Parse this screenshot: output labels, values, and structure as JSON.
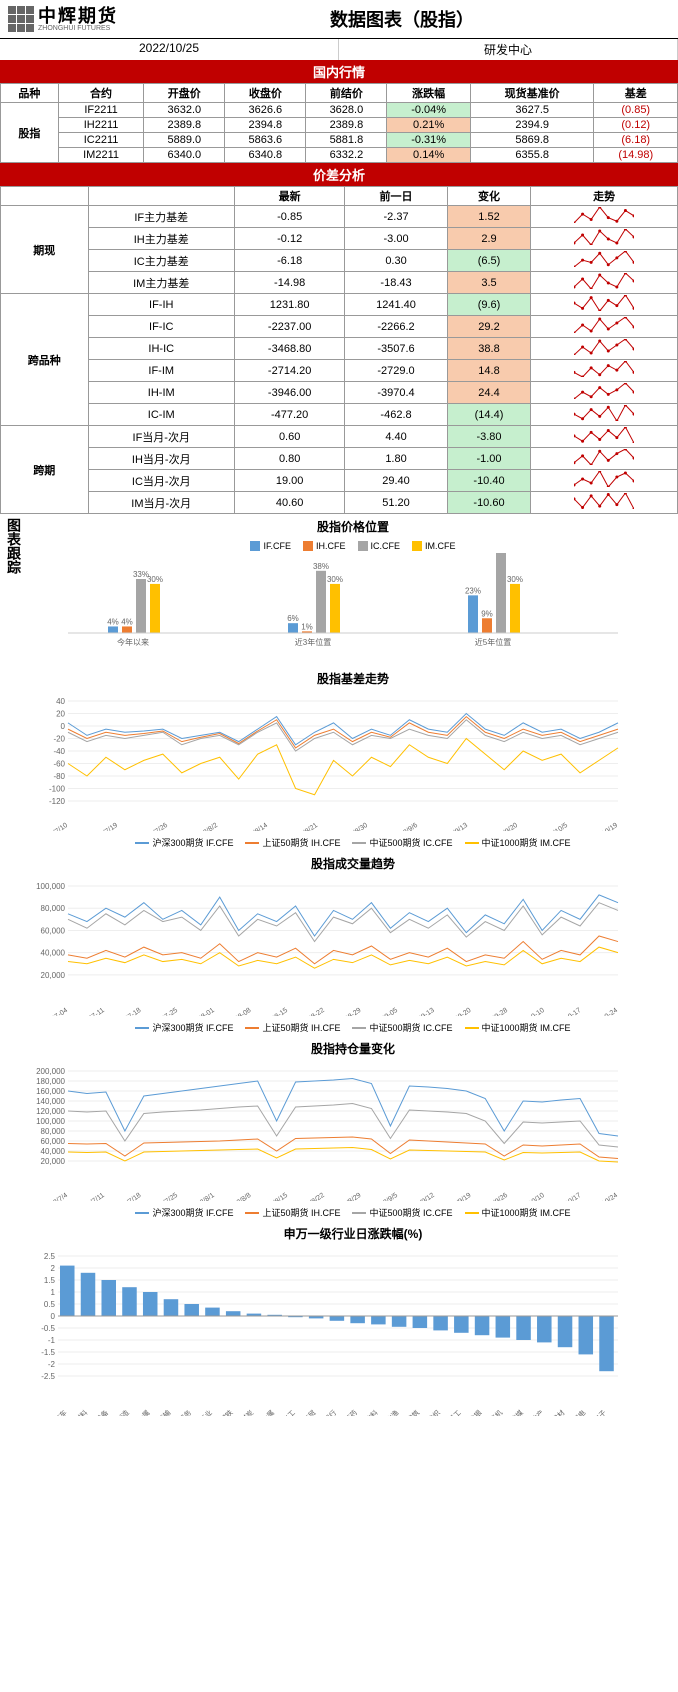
{
  "header": {
    "logo_cn": "中辉期货",
    "logo_en": "ZHONGHUI FUTURES",
    "title": "数据图表（股指）",
    "date": "2022/10/25",
    "dept": "研发中心"
  },
  "band1": "国内行情",
  "t1": {
    "cols": [
      "品种",
      "合约",
      "开盘价",
      "收盘价",
      "前结价",
      "涨跌幅",
      "现货基准价",
      "基差"
    ],
    "rowlbl": "股指",
    "rows": [
      [
        "IF2211",
        "3632.0",
        "3626.6",
        "3628.0",
        "-0.04%",
        "3627.5",
        "(0.85)"
      ],
      [
        "IH2211",
        "2389.8",
        "2394.8",
        "2389.8",
        "0.21%",
        "2394.9",
        "(0.12)"
      ],
      [
        "IC2211",
        "5889.0",
        "5863.6",
        "5881.8",
        "-0.31%",
        "5869.8",
        "(6.18)"
      ],
      [
        "IM2211",
        "6340.0",
        "6340.8",
        "6332.2",
        "0.14%",
        "6355.8",
        "(14.98)"
      ]
    ],
    "chg_bg": [
      "bg-grn",
      "bg-red",
      "bg-grn",
      "bg-red"
    ]
  },
  "band2": "价差分析",
  "t2": {
    "cols": [
      "",
      "",
      "最新",
      "前一日",
      "变化",
      "走势"
    ],
    "groups": [
      {
        "lbl": "期现",
        "rows": [
          [
            "IF主力基差",
            "-0.85",
            "-2.37",
            "1.52",
            "bg-red",
            [
              3,
              8,
              5,
              12,
              6,
              4,
              10,
              7
            ]
          ],
          [
            "IH主力基差",
            "-0.12",
            "-3.00",
            "2.9",
            "bg-red",
            [
              5,
              9,
              4,
              11,
              7,
              5,
              12,
              8
            ]
          ],
          [
            "IC主力基差",
            "-6.18",
            "0.30",
            "(6.5)",
            "bg-grn",
            [
              4,
              7,
              6,
              10,
              5,
              8,
              11,
              6
            ]
          ],
          [
            "IM主力基差",
            "-14.98",
            "-18.43",
            "3.5",
            "bg-red",
            [
              6,
              10,
              5,
              12,
              8,
              6,
              13,
              9
            ]
          ]
        ]
      },
      {
        "lbl": "跨品种",
        "rows": [
          [
            "IF-IH",
            "1231.80",
            "1241.40",
            "(9.6)",
            "bg-grn",
            [
              7,
              5,
              9,
              4,
              8,
              6,
              10,
              5
            ]
          ],
          [
            "IF-IC",
            "-2237.00",
            "-2266.2",
            "29.2",
            "bg-red",
            [
              4,
              8,
              5,
              11,
              6,
              9,
              12,
              7
            ]
          ],
          [
            "IH-IC",
            "-3468.80",
            "-3507.6",
            "38.8",
            "bg-red",
            [
              5,
              9,
              6,
              12,
              7,
              10,
              13,
              8
            ]
          ],
          [
            "IF-IM",
            "-2714.20",
            "-2729.0",
            "14.8",
            "bg-red",
            [
              6,
              4,
              8,
              5,
              9,
              7,
              11,
              6
            ]
          ],
          [
            "IH-IM",
            "-3946.00",
            "-3970.4",
            "24.4",
            "bg-red",
            [
              5,
              8,
              6,
              10,
              7,
              9,
              12,
              8
            ]
          ],
          [
            "IC-IM",
            "-477.20",
            "-462.8",
            "(14.4)",
            "bg-grn",
            [
              7,
              5,
              9,
              6,
              10,
              4,
              11,
              7
            ]
          ]
        ]
      },
      {
        "lbl": "跨期",
        "rows": [
          [
            "IF当月-次月",
            "0.60",
            "4.40",
            "-3.80",
            "bg-grn",
            [
              8,
              5,
              10,
              6,
              11,
              7,
              13,
              4
            ]
          ],
          [
            "IH当月-次月",
            "0.80",
            "1.80",
            "-1.00",
            "bg-grn",
            [
              6,
              9,
              5,
              11,
              7,
              10,
              12,
              8
            ]
          ],
          [
            "IC当月-次月",
            "19.00",
            "29.40",
            "-10.40",
            "bg-grn",
            [
              5,
              8,
              6,
              12,
              4,
              9,
              11,
              7
            ]
          ],
          [
            "IM当月-次月",
            "40.60",
            "51.20",
            "-10.60",
            "bg-grn",
            [
              10,
              4,
              12,
              5,
              13,
              6,
              14,
              3
            ]
          ]
        ]
      }
    ]
  },
  "chart_lbl": "图表跟踪",
  "c1": {
    "title": "股指价格位置",
    "legend": [
      [
        "IF.CFE",
        "#5b9bd5"
      ],
      [
        "IH.CFE",
        "#ed7d31"
      ],
      [
        "IC.CFE",
        "#a5a5a5"
      ],
      [
        "IM.CFE",
        "#ffc000"
      ]
    ],
    "groups": [
      "今年以来",
      "近3年位置",
      "近5年位置"
    ],
    "data": [
      [
        4,
        4,
        33,
        30
      ],
      [
        6,
        1,
        38,
        30
      ],
      [
        23,
        9,
        51,
        30
      ]
    ]
  },
  "c2": {
    "title": "股指基差走势",
    "legend": [
      [
        "沪深300期货 IF.CFE",
        "#5b9bd5"
      ],
      [
        "上证50期货 IH.CFE",
        "#ed7d31"
      ],
      [
        "中证500期货 IC.CFE",
        "#a5a5a5"
      ],
      [
        "中证1000期货 IM.CFE",
        "#ffc000"
      ]
    ],
    "yticks": [
      40,
      20,
      0,
      -20,
      -40,
      -60,
      -80,
      -100,
      -120
    ],
    "ylim": [
      -120,
      40
    ],
    "xlabels": [
      "2022/7/10",
      "2022/7/19",
      "2022/7/26",
      "2022/8/2",
      "2022/8/14",
      "2022/8/21",
      "2022/8/30",
      "2022/9/6",
      "2022/9/13",
      "2022/9/20",
      "2022/10/5",
      "2022/10/19"
    ],
    "series": [
      [
        5,
        -15,
        -5,
        -10,
        -8,
        -5,
        -20,
        -15,
        -10,
        -25,
        -5,
        15,
        -30,
        -10,
        5,
        -20,
        -5,
        -15,
        10,
        -5,
        -10,
        20,
        -5,
        -15,
        5,
        -10,
        -5,
        -20,
        -10,
        5
      ],
      [
        -5,
        -20,
        -10,
        -15,
        -12,
        -8,
        -25,
        -18,
        -12,
        -28,
        -8,
        10,
        -35,
        -15,
        -5,
        -25,
        -10,
        -18,
        5,
        -10,
        -15,
        15,
        -10,
        -20,
        -5,
        -15,
        -10,
        -25,
        -15,
        -5
      ],
      [
        -10,
        -25,
        -15,
        -20,
        -15,
        -10,
        -30,
        -20,
        -15,
        -30,
        -10,
        5,
        -40,
        -20,
        -10,
        -30,
        -15,
        -20,
        -5,
        -15,
        -20,
        10,
        -15,
        -25,
        -10,
        -20,
        -15,
        -30,
        -20,
        -10
      ],
      [
        -60,
        -80,
        -50,
        -70,
        -55,
        -45,
        -75,
        -60,
        -50,
        -85,
        -45,
        -30,
        -100,
        -110,
        -55,
        -80,
        -50,
        -65,
        -30,
        -50,
        -60,
        -20,
        -45,
        -70,
        -40,
        -55,
        -45,
        -75,
        -55,
        -35
      ]
    ]
  },
  "c3": {
    "title": "股指成交量趋势",
    "legend": [
      [
        "沪深300期货 IF.CFE",
        "#5b9bd5"
      ],
      [
        "上证50期货 IH.CFE",
        "#ed7d31"
      ],
      [
        "中证500期货 IC.CFE",
        "#a5a5a5"
      ],
      [
        "中证1000期货 IM.CFE",
        "#ffc000"
      ]
    ],
    "yticks": [
      100000,
      80000,
      60000,
      40000,
      20000
    ],
    "ylim": [
      10000,
      100000
    ],
    "xlabels": [
      "2022-07-04",
      "2022-07-11",
      "2022-07-18",
      "2022-07-25",
      "2022-08-01",
      "2022-08-08",
      "2022-08-15",
      "2022-08-22",
      "2022-08-29",
      "2022-09-05",
      "2022-09-13",
      "2022-09-20",
      "2022-09-28",
      "2022-10-10",
      "2022-10-17",
      "2022-10-24"
    ],
    "series": [
      [
        75000,
        68000,
        80000,
        72000,
        85000,
        70000,
        78000,
        65000,
        90000,
        60000,
        75000,
        68000,
        82000,
        55000,
        78000,
        70000,
        85000,
        62000,
        76000,
        68000,
        80000,
        58000,
        74000,
        66000,
        88000,
        60000,
        78000,
        70000,
        92000,
        85000
      ],
      [
        38000,
        35000,
        42000,
        36000,
        45000,
        38000,
        40000,
        35000,
        48000,
        32000,
        40000,
        36000,
        44000,
        30000,
        42000,
        38000,
        46000,
        34000,
        40000,
        36000,
        44000,
        32000,
        38000,
        35000,
        50000,
        34000,
        42000,
        38000,
        55000,
        50000
      ],
      [
        70000,
        62000,
        75000,
        65000,
        78000,
        68000,
        72000,
        60000,
        82000,
        55000,
        70000,
        64000,
        76000,
        50000,
        72000,
        66000,
        80000,
        58000,
        70000,
        62000,
        74000,
        54000,
        68000,
        60000,
        82000,
        56000,
        72000,
        64000,
        85000,
        78000
      ],
      [
        32000,
        30000,
        35000,
        31000,
        38000,
        32000,
        34000,
        30000,
        40000,
        28000,
        33000,
        30000,
        36000,
        26000,
        34000,
        31000,
        38000,
        29000,
        33000,
        30000,
        36000,
        28000,
        32000,
        29000,
        42000,
        30000,
        35000,
        32000,
        45000,
        40000
      ]
    ]
  },
  "c4": {
    "title": "股指持仓量变化",
    "legend": [
      [
        "沪深300期货 IF.CFE",
        "#5b9bd5"
      ],
      [
        "上证50期货 IH.CFE",
        "#ed7d31"
      ],
      [
        "中证500期货 IC.CFE",
        "#a5a5a5"
      ],
      [
        "中证1000期货 IM.CFE",
        "#ffc000"
      ]
    ],
    "yticks": [
      200000,
      180000,
      160000,
      140000,
      120000,
      100000,
      80000,
      60000,
      40000,
      20000
    ],
    "ylim": [
      0,
      200000
    ],
    "xlabels": [
      "2022/7/4",
      "2022/7/11",
      "2022/7/18",
      "2022/7/25",
      "2022/8/1",
      "2022/8/8",
      "2022/8/15",
      "2022/8/22",
      "2022/8/29",
      "2022/9/5",
      "2022/9/12",
      "2022/9/19",
      "2022/9/26",
      "2022/10/10",
      "2022/10/17",
      "2022/10/24"
    ],
    "series": [
      [
        160000,
        155000,
        158000,
        80000,
        150000,
        155000,
        160000,
        165000,
        170000,
        175000,
        180000,
        100000,
        178000,
        180000,
        182000,
        185000,
        175000,
        90000,
        170000,
        168000,
        165000,
        160000,
        145000,
        80000,
        140000,
        138000,
        142000,
        145000,
        75000,
        70000
      ],
      [
        55000,
        54000,
        55000,
        30000,
        56000,
        57000,
        58000,
        59000,
        60000,
        62000,
        64000,
        40000,
        65000,
        66000,
        67000,
        68000,
        64000,
        35000,
        62000,
        60000,
        58000,
        56000,
        54000,
        30000,
        52000,
        50000,
        52000,
        54000,
        28000,
        25000
      ],
      [
        120000,
        118000,
        120000,
        60000,
        115000,
        118000,
        120000,
        122000,
        125000,
        128000,
        130000,
        70000,
        128000,
        130000,
        132000,
        135000,
        125000,
        65000,
        122000,
        120000,
        118000,
        115000,
        100000,
        55000,
        98000,
        96000,
        98000,
        100000,
        52000,
        48000
      ],
      [
        38000,
        37000,
        38000,
        20000,
        38000,
        39000,
        40000,
        41000,
        42000,
        43000,
        44000,
        26000,
        44000,
        45000,
        46000,
        47000,
        43000,
        24000,
        42000,
        41000,
        40000,
        39000,
        38000,
        22000,
        37000,
        36000,
        37000,
        38000,
        20000,
        18000
      ]
    ]
  },
  "c5": {
    "title": "申万一级行业日涨跌幅(%)",
    "yticks": [
      2.5,
      2,
      1.5,
      1,
      0.5,
      0,
      -0.5,
      -1,
      -1.5,
      -2,
      -2.5
    ],
    "ylim": [
      -2.5,
      2.5
    ],
    "color": "#5b9bd5",
    "labels": [
      "汽车",
      "通信材料",
      "电力设备",
      "机械制造",
      "有色金属",
      "交通运输",
      "社会服务",
      "公用事业",
      "钢铁",
      "煤炭",
      "有色金属",
      "化工",
      "商贸",
      "银行",
      "医药",
      "食品饮料",
      "农林牧渔",
      "建筑",
      "纺织",
      "轻工",
      "非银",
      "计算机",
      "传媒",
      "房地产",
      "建材",
      "家电",
      "消费电子"
    ],
    "values": [
      2.1,
      1.8,
      1.5,
      1.2,
      1.0,
      0.7,
      0.5,
      0.35,
      0.2,
      0.1,
      0.05,
      -0.05,
      -0.1,
      -0.2,
      -0.3,
      -0.35,
      -0.45,
      -0.5,
      -0.6,
      -0.7,
      -0.8,
      -0.9,
      -1.0,
      -1.1,
      -1.3,
      -1.6,
      -2.3
    ]
  }
}
